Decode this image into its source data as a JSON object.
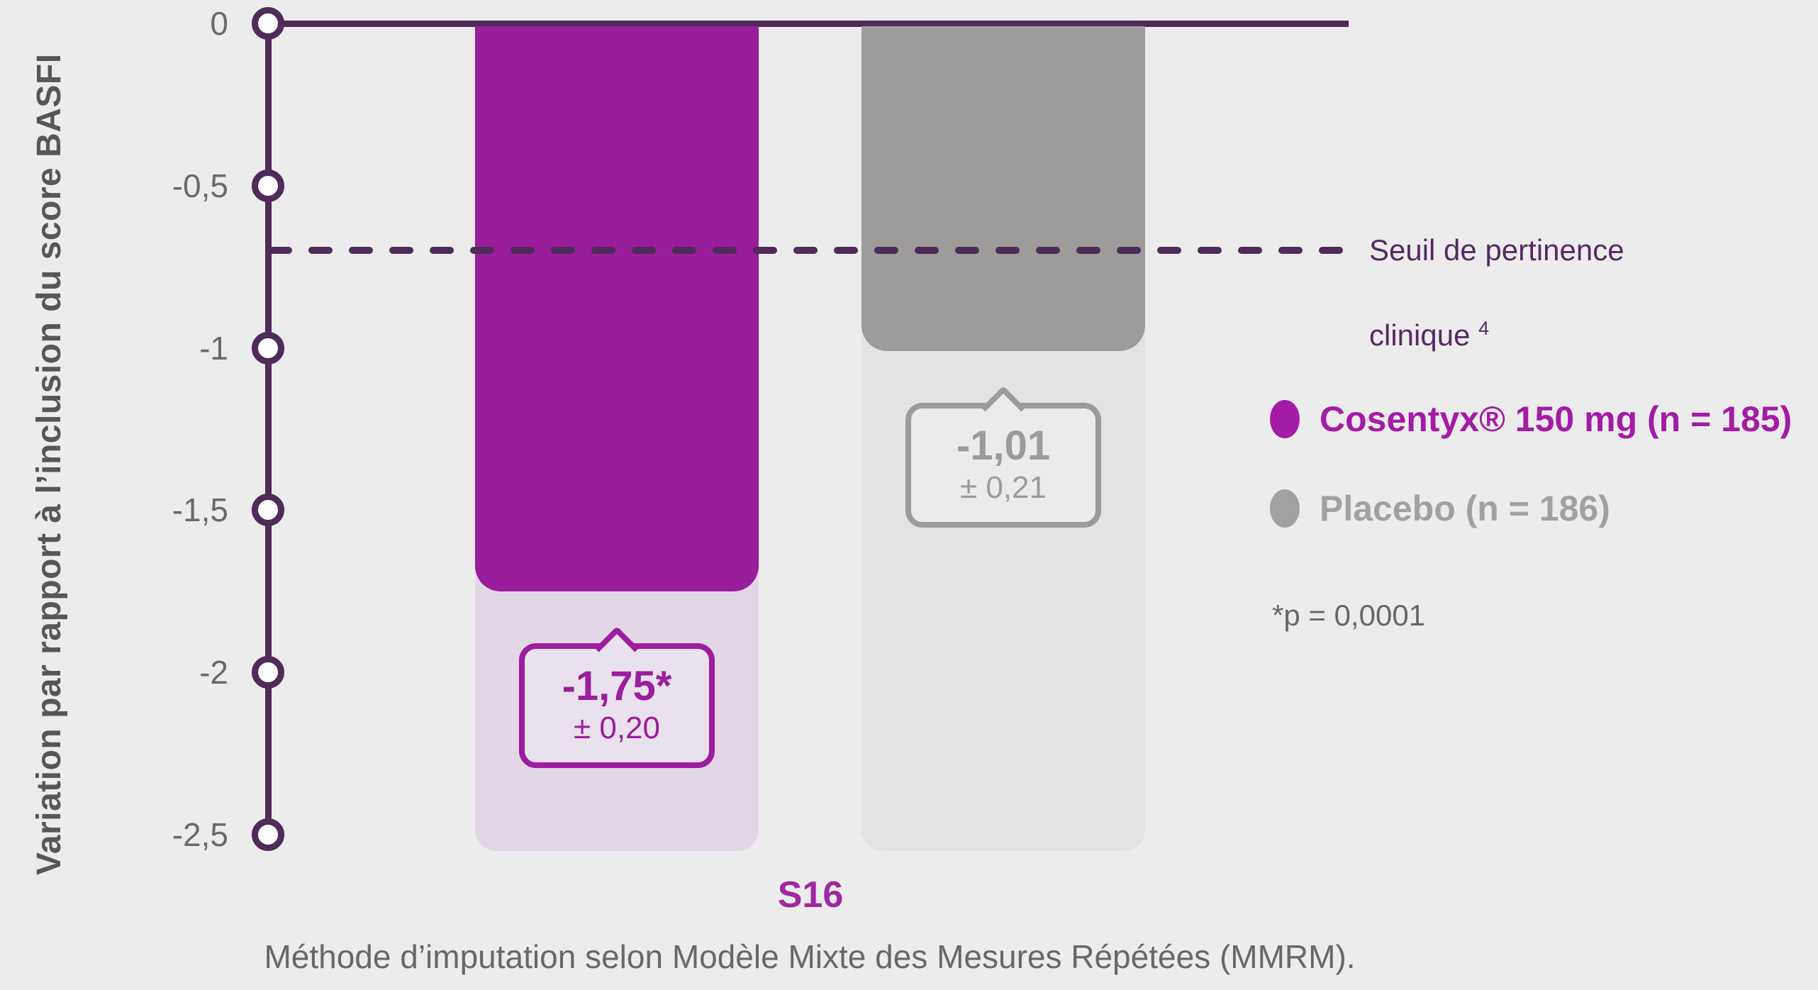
{
  "page": {
    "background_color": "#ececec"
  },
  "chart_data": {
    "type": "bar",
    "title": "",
    "ylabel": "Variation par rapport à l’inclusion du score BASFI",
    "x_category": "S16",
    "ylim": [
      -2.5,
      0
    ],
    "grid": false,
    "legend_position": "right",
    "axis_color": "#4e2b59",
    "tick_label_color": "#6a6a6a",
    "yticks": [
      {
        "value": 0,
        "label": "0"
      },
      {
        "value": -0.5,
        "label": "-0,5"
      },
      {
        "value": -1,
        "label": "-1"
      },
      {
        "value": -1.5,
        "label": "-1,5"
      },
      {
        "value": -2,
        "label": "-2"
      },
      {
        "value": -2.5,
        "label": "-2,5"
      }
    ],
    "series": [
      {
        "name": "Cosentyx® 150 mg (n = 185)",
        "value": -1.75,
        "value_label": "-1,75*",
        "error_label": "± 0,20",
        "color": "#9a1d9c",
        "pale_color": "#e3d7e7",
        "callout_fill": "#eae1ee",
        "accent_color": "#9c1d9e",
        "legend_color": "#a41ba5"
      },
      {
        "name": "Placebo (n = 186)",
        "value": -1.01,
        "value_label": "-1,01",
        "error_label": "± 0,21",
        "color": "#9d9c9b",
        "pale_color": "#e4e3e4",
        "callout_fill": "#ebebeb",
        "accent_color": "#9c9b9a",
        "legend_color": "#a2a1a0"
      }
    ],
    "threshold": {
      "value": -0.7,
      "label_line1": "Seuil de pertinence",
      "label_line2": "clinique",
      "label_superscript": "4",
      "line_color": "#4e2b59",
      "text_color": "#562a63"
    },
    "significance_note": "*p = 0,0001",
    "footnote": "Méthode d’imputation selon Modèle Mixte des Mesures Répétées (MMRM)."
  }
}
